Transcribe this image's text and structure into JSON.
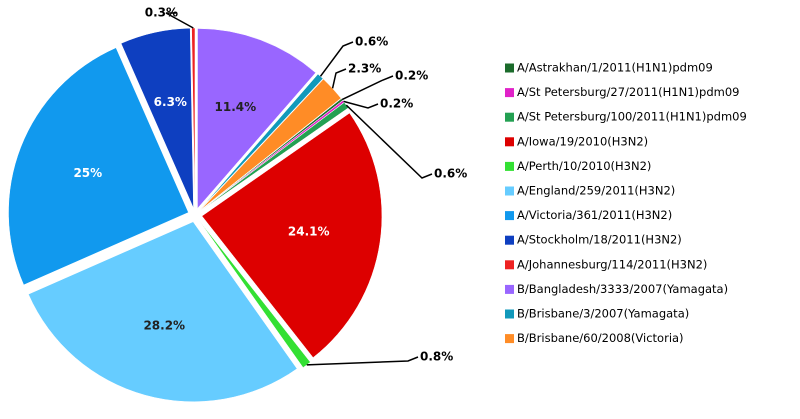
{
  "chart_data": {
    "type": "pie",
    "categories": [
      "A/Astrakhan/1/2011(H1N1)pdm09",
      "A/St Petersburg/27/2011(H1N1)pdm09",
      "A/St Petersburg/100/2011(H1N1)pdm09",
      "A/Iowa/19/2010(H3N2)",
      "A/Perth/10/2010(H3N2)",
      "A/England/259/2011(H3N2)",
      "A/Victoria/361/2011(H3N2)",
      "A/Stockholm/18/2011(H3N2)",
      "A/Johannesburg/114/2011(H3N2)",
      "B/Bangladesh/3333/2007(Yamagata)",
      "B/Brisbane/3/2007(Yamagata)",
      "B/Brisbane/60/2008(Victoria)"
    ],
    "values": [
      0.2,
      0.2,
      0.6,
      24.1,
      0.8,
      28.2,
      25,
      6.3,
      0.3,
      11.4,
      0.6,
      2.3
    ],
    "value_labels": [
      "0.2%",
      "0.2%",
      "0.6%",
      "24.1%",
      "0.8%",
      "28.2%",
      "25%",
      "6.3%",
      "0.3%",
      "11.4%",
      "0.6%",
      "2.3%"
    ],
    "colors": [
      "#1b6b2b",
      "#e022c8",
      "#23a052",
      "#dd0000",
      "#33e033",
      "#66ccff",
      "#1199ee",
      "#0e3fc0",
      "#ee2222",
      "#9966ff",
      "#1199bb",
      "#ff8c26"
    ],
    "legend": "right"
  }
}
